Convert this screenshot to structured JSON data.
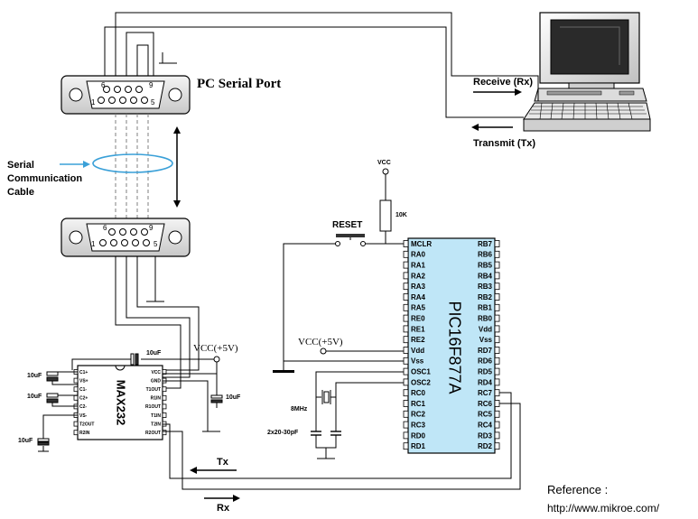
{
  "labels": {
    "pc_serial_port": "PC Serial Port",
    "receive": "Receive (Rx)",
    "transmit": "Transmit (Tx)",
    "serial_line1": "Serial",
    "serial_line2": "Communication",
    "serial_line3": "Cable",
    "reset": "RESET",
    "vcc": "VCC",
    "resistor": "10K",
    "vcc5_a": "VCC(+5V)",
    "vcc5_b": "VCC(+5V)",
    "crystal": "8MHz",
    "caps": "2x20-30pF",
    "max232": "MAX232",
    "pic": "PIC16F877A",
    "tx": "Tx",
    "rx": "Rx",
    "reference": "Reference :",
    "url": "http://www.mikroe.com/",
    "cap_10uf": "10uF"
  },
  "db9": {
    "top_row": [
      "6",
      "9"
    ],
    "bottom_row": [
      "1",
      "5"
    ]
  },
  "max232_pins": {
    "left": [
      "C1+",
      "VS+",
      "C1-",
      "C2+",
      "C2-",
      "VS-",
      "T2OUT",
      "R2IN"
    ],
    "right": [
      "VCC",
      "GND",
      "T1OUT",
      "R1IN",
      "R1OUT",
      "T1IN",
      "T2IN",
      "R2OUT"
    ]
  },
  "pic_pins": {
    "left": [
      "MCLR",
      "RA0",
      "RA1",
      "RA2",
      "RA3",
      "RA4",
      "RA5",
      "RE0",
      "RE1",
      "RE2",
      "Vdd",
      "Vss",
      "OSC1",
      "OSC2",
      "RC0",
      "RC1",
      "RC2",
      "RC3",
      "RD0",
      "RD1"
    ],
    "right": [
      "RB7",
      "RB6",
      "RB5",
      "RB4",
      "RB3",
      "RB2",
      "RB1",
      "RB0",
      "Vdd",
      "Vss",
      "RD7",
      "RD6",
      "RD5",
      "RD4",
      "RC7",
      "RC6",
      "RC5",
      "RC4",
      "RD3",
      "RD2"
    ]
  },
  "colors": {
    "cable": "#3aa0d8",
    "pic_fill": "#bfe6f7",
    "wire": "#000000"
  }
}
